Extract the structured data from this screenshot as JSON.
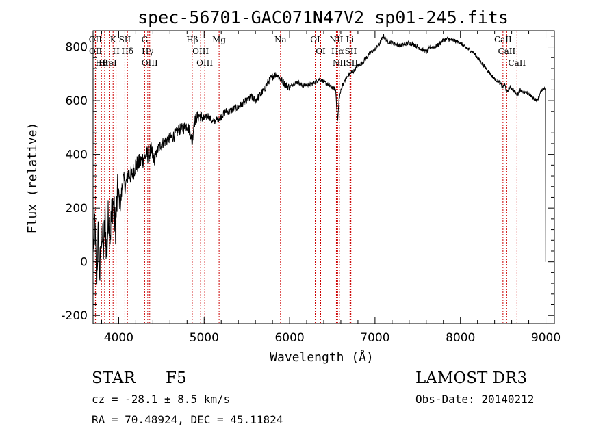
{
  "chart_data": {
    "type": "line",
    "title": "spec-56701-GAC071N47V2_sp01-245.fits",
    "xlabel": "Wavelength (Å)",
    "ylabel": "Flux (relative)",
    "xlim": [
      3700,
      9100
    ],
    "ylim": [
      -230,
      860
    ],
    "xticks": [
      4000,
      5000,
      6000,
      7000,
      8000,
      9000
    ],
    "yticks": [
      -200,
      0,
      200,
      400,
      600,
      800
    ],
    "series": [
      {
        "name": "flux",
        "x": [
          3700,
          3720,
          3740,
          3760,
          3780,
          3800,
          3820,
          3840,
          3860,
          3880,
          3900,
          3930,
          3960,
          3990,
          4020,
          4050,
          4080,
          4110,
          4150,
          4200,
          4250,
          4300,
          4340,
          4380,
          4420,
          4460,
          4500,
          4550,
          4600,
          4650,
          4700,
          4750,
          4800,
          4840,
          4861,
          4880,
          4920,
          4960,
          5000,
          5050,
          5100,
          5150,
          5200,
          5250,
          5300,
          5350,
          5400,
          5450,
          5500,
          5550,
          5600,
          5650,
          5700,
          5750,
          5800,
          5850,
          5893,
          5950,
          6000,
          6050,
          6100,
          6150,
          6200,
          6250,
          6300,
          6350,
          6400,
          6450,
          6500,
          6540,
          6563,
          6580,
          6620,
          6660,
          6700,
          6750,
          6800,
          6850,
          6900,
          6950,
          7000,
          7050,
          7100,
          7150,
          7200,
          7250,
          7300,
          7350,
          7400,
          7450,
          7500,
          7550,
          7600,
          7650,
          7700,
          7750,
          7800,
          7850,
          7900,
          7950,
          8000,
          8050,
          8100,
          8150,
          8200,
          8250,
          8300,
          8350,
          8400,
          8450,
          8498,
          8520,
          8542,
          8580,
          8620,
          8662,
          8700,
          8750,
          8800,
          8850,
          8900,
          8950,
          8990,
          9000,
          9005
        ],
        "values": [
          30,
          150,
          -80,
          100,
          -50,
          120,
          40,
          160,
          20,
          190,
          100,
          230,
          130,
          260,
          210,
          310,
          280,
          330,
          320,
          360,
          370,
          390,
          400,
          410,
          380,
          420,
          440,
          450,
          460,
          470,
          490,
          495,
          510,
          480,
          440,
          520,
          540,
          545,
          530,
          545,
          520,
          530,
          540,
          560,
          560,
          570,
          575,
          590,
          600,
          615,
          600,
          620,
          640,
          670,
          690,
          700,
          680,
          660,
          650,
          665,
          670,
          655,
          660,
          660,
          670,
          680,
          670,
          660,
          650,
          640,
          520,
          610,
          660,
          680,
          700,
          710,
          730,
          740,
          760,
          780,
          790,
          810,
          840,
          820,
          815,
          810,
          805,
          810,
          815,
          810,
          800,
          790,
          780,
          800,
          800,
          810,
          825,
          830,
          825,
          820,
          815,
          800,
          790,
          780,
          760,
          740,
          720,
          700,
          680,
          670,
          650,
          660,
          630,
          650,
          640,
          620,
          640,
          630,
          625,
          610,
          600,
          640,
          650,
          600,
          0
        ]
      }
    ],
    "line_markers": [
      {
        "label": "Hθ",
        "wavelength": 3798
      },
      {
        "label": "OII",
        "wavelength": 3727
      },
      {
        "label": "OII",
        "wavelength": 3729
      },
      {
        "label": "Hη",
        "wavelength": 3835
      },
      {
        "label": "K",
        "wavelength": 3934
      },
      {
        "label": "HeI",
        "wavelength": 3889
      },
      {
        "label": "H",
        "wavelength": 3969
      },
      {
        "label": "Hδ",
        "wavelength": 4102
      },
      {
        "label": "SII",
        "wavelength": 4072
      },
      {
        "label": "OIII",
        "wavelength": 4363
      },
      {
        "label": "Hγ",
        "wavelength": 4340
      },
      {
        "label": "G",
        "wavelength": 4304
      },
      {
        "label": "OIII",
        "wavelength": 4959
      },
      {
        "label": "OIII",
        "wavelength": 5007
      },
      {
        "label": "Hβ",
        "wavelength": 4861
      },
      {
        "label": "Mg",
        "wavelength": 5175
      },
      {
        "label": "Na",
        "wavelength": 5894
      },
      {
        "label": "OI",
        "wavelength": 6300
      },
      {
        "label": "OI",
        "wavelength": 6364
      },
      {
        "label": "Hα",
        "wavelength": 6563
      },
      {
        "label": "NII",
        "wavelength": 6548
      },
      {
        "label": "NII",
        "wavelength": 6583
      },
      {
        "label": "SII",
        "wavelength": 6716
      },
      {
        "label": "Li",
        "wavelength": 6707
      },
      {
        "label": "SII",
        "wavelength": 6731
      },
      {
        "label": "CaII",
        "wavelength": 8542
      },
      {
        "label": "CaII",
        "wavelength": 8498
      },
      {
        "label": "CaII",
        "wavelength": 8662
      }
    ]
  },
  "info": {
    "object_class": "STAR",
    "subclass": "F5",
    "survey": "LAMOST DR3",
    "cz": "cz = -28.1 ± 8.5 km/s",
    "obs_date": "Obs-Date: 20140212",
    "coords": "RA =  70.48924, DEC =  45.11824"
  }
}
